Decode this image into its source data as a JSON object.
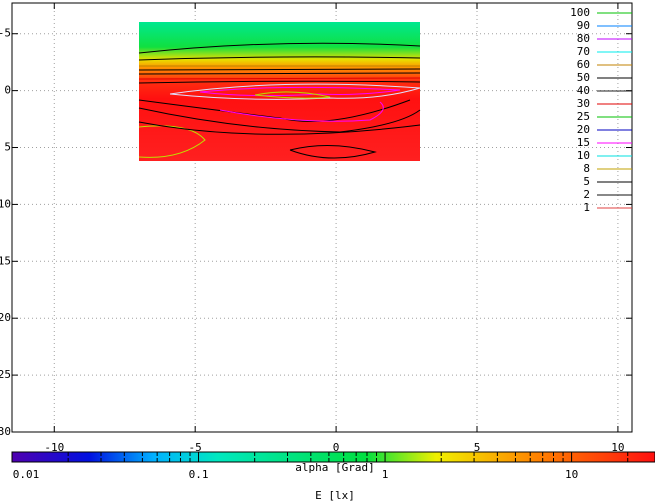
{
  "chart_data": {
    "type": "contour",
    "xlabel": "alpha [Grad]",
    "xlim": [
      -11.5,
      10.5
    ],
    "xticks": [
      -10,
      -5,
      0,
      5,
      10
    ],
    "ylim": [
      -7.7,
      30
    ],
    "yticks": [
      -5,
      0,
      5,
      10,
      15,
      20,
      25,
      30
    ],
    "y_reversed": true,
    "grid": true,
    "contour_levels": [
      {
        "name": "100",
        "color": "#00c000"
      },
      {
        "name": "90",
        "color": "#0080ff"
      },
      {
        "name": "80",
        "color": "#c000ff"
      },
      {
        "name": "70",
        "color": "#00eeee"
      },
      {
        "name": "60",
        "color": "#c08000"
      },
      {
        "name": "50",
        "color": "#000000"
      },
      {
        "name": "40",
        "color": "#202020"
      },
      {
        "name": "30",
        "color": "#e00000"
      },
      {
        "name": "25",
        "color": "#00c000"
      },
      {
        "name": "20",
        "color": "#0000c0"
      },
      {
        "name": "15",
        "color": "#ff00ff"
      },
      {
        "name": "10",
        "color": "#00e0e0"
      },
      {
        "name": "8",
        "color": "#c0a000"
      },
      {
        "name": "5",
        "color": "#000000"
      },
      {
        "name": "2",
        "color": "#101010"
      },
      {
        "name": "1",
        "color": "#e04040"
      }
    ],
    "colorbar": {
      "label": "E [lx]",
      "log": true,
      "lim": [
        0.01,
        28
      ],
      "ticks": [
        0.01,
        0.1,
        1,
        10
      ]
    }
  }
}
